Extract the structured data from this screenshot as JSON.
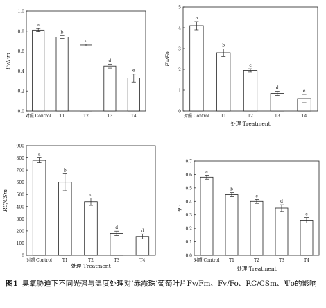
{
  "chart_data": [
    {
      "type": "bar",
      "categories": [
        "对照 Control",
        "T1",
        "T2",
        "T3",
        "T4"
      ],
      "values": [
        0.81,
        0.74,
        0.66,
        0.45,
        0.33
      ],
      "errors": [
        0.015,
        0.015,
        0.01,
        0.02,
        0.04
      ],
      "letters": [
        "a",
        "b",
        "c",
        "d",
        "e"
      ],
      "ylabel": "Fv/Fm",
      "xlabel": "",
      "ylim": [
        0,
        1.0
      ],
      "yticks": [
        "0.0",
        "0.2",
        "0.4",
        "0.6",
        "0.8",
        "1.0"
      ],
      "tick_values": [
        0,
        0.2,
        0.4,
        0.6,
        0.8,
        1.0
      ]
    },
    {
      "type": "bar",
      "categories": [
        "对照 Control",
        "T1",
        "T2",
        "T3",
        "T4"
      ],
      "values": [
        4.1,
        2.8,
        1.95,
        0.85,
        0.6
      ],
      "errors": [
        0.2,
        0.18,
        0.08,
        0.1,
        0.2
      ],
      "letters": [
        "a",
        "b",
        "c",
        "d",
        "e"
      ],
      "ylabel": "Fv/Fo",
      "xlabel": "处理 Treatment",
      "ylim": [
        0,
        5
      ],
      "yticks": [
        "0",
        "1",
        "2",
        "3",
        "4",
        "5"
      ],
      "tick_values": [
        0,
        1,
        2,
        3,
        4,
        5
      ]
    },
    {
      "type": "bar",
      "categories": [
        "对照 Control",
        "T1",
        "T2",
        "T3",
        "T4"
      ],
      "values": [
        780,
        600,
        440,
        180,
        155
      ],
      "errors": [
        20,
        70,
        30,
        18,
        20
      ],
      "letters": [
        "a",
        "b",
        "c",
        "d",
        "d"
      ],
      "ylabel": "RC/CSm",
      "xlabel": "处理 Treatment",
      "ylim": [
        0,
        900
      ],
      "yticks": [
        "0",
        "100",
        "200",
        "300",
        "400",
        "500",
        "600",
        "700",
        "800",
        "900"
      ],
      "tick_values": [
        0,
        100,
        200,
        300,
        400,
        500,
        600,
        700,
        800,
        900
      ]
    },
    {
      "type": "bar",
      "categories": [
        "对照 Control",
        "T1",
        "T2",
        "T3",
        "T4"
      ],
      "values": [
        0.58,
        0.45,
        0.4,
        0.35,
        0.26
      ],
      "errors": [
        0.015,
        0.015,
        0.015,
        0.025,
        0.02
      ],
      "letters": [
        "a",
        "b",
        "c",
        "d",
        "e"
      ],
      "ylabel": "ψo",
      "xlabel": "处理 Treatment",
      "ylim": [
        0,
        0.7
      ],
      "yticks": [
        "0.0",
        "0.1",
        "0.2",
        "0.3",
        "0.4",
        "0.5",
        "0.6",
        "0.7"
      ],
      "tick_values": [
        0,
        0.1,
        0.2,
        0.3,
        0.4,
        0.5,
        0.6,
        0.7
      ]
    }
  ],
  "caption": {
    "figure_number": "图1",
    "text": "臭氧胁迫下不同光强与温度处理对‘赤霞珠’葡萄叶片Fv/Fm、Fv/Fo、RC/CSm、Ψo的影响"
  }
}
